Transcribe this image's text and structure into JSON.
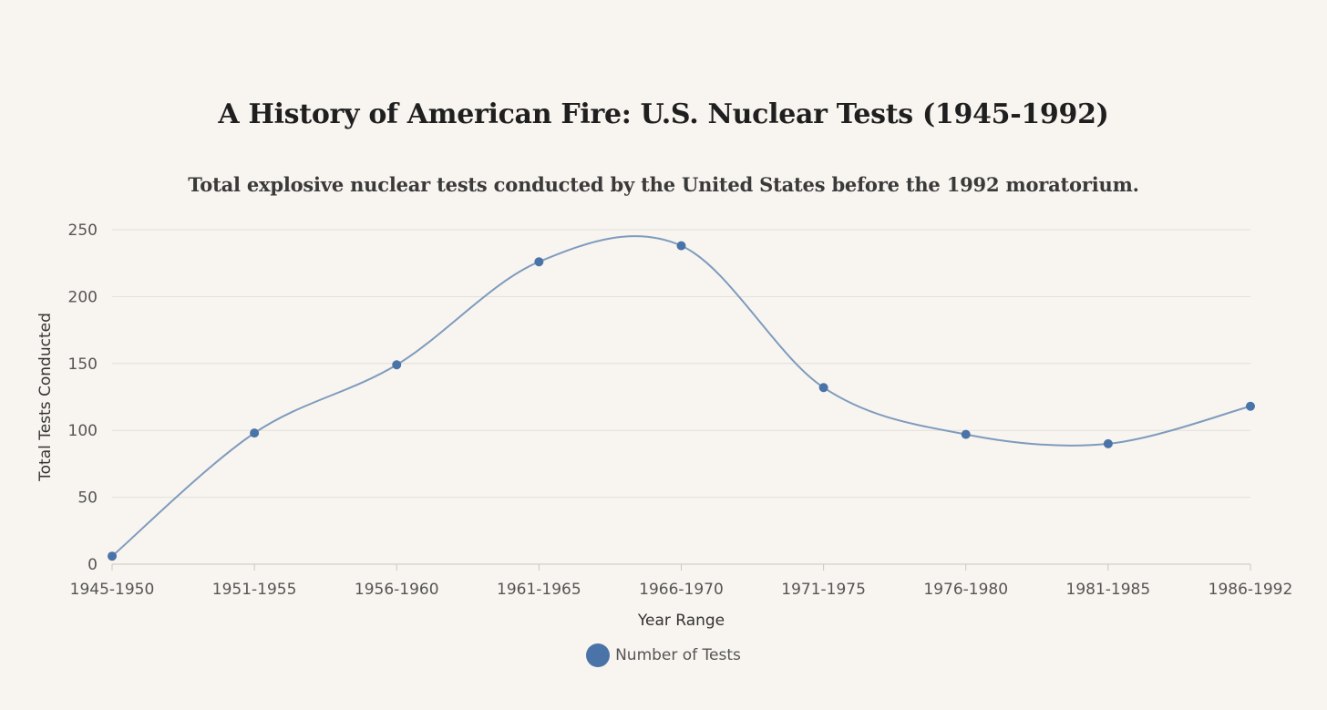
{
  "chart_data": {
    "type": "line",
    "title": "A History of American Fire: U.S. Nuclear Tests (1945-1992)",
    "subtitle": "Total explosive nuclear tests conducted by the United States before the 1992 moratorium.",
    "xlabel": "Year Range",
    "ylabel": "Total Tests Conducted",
    "categories": [
      "1945-1950",
      "1951-1955",
      "1956-1960",
      "1961-1965",
      "1966-1970",
      "1971-1975",
      "1976-1980",
      "1981-1985",
      "1986-1992"
    ],
    "series": [
      {
        "name": "Number of Tests",
        "values": [
          6,
          98,
          149,
          226,
          238,
          132,
          97,
          90,
          118
        ],
        "color": "#4a74a8",
        "line_color": "#7f9bbd"
      }
    ],
    "ylim": [
      0,
      250
    ],
    "yticks": [
      0,
      50,
      100,
      150,
      200,
      250
    ],
    "grid": true,
    "smooth": true,
    "legend_position": "bottom"
  }
}
